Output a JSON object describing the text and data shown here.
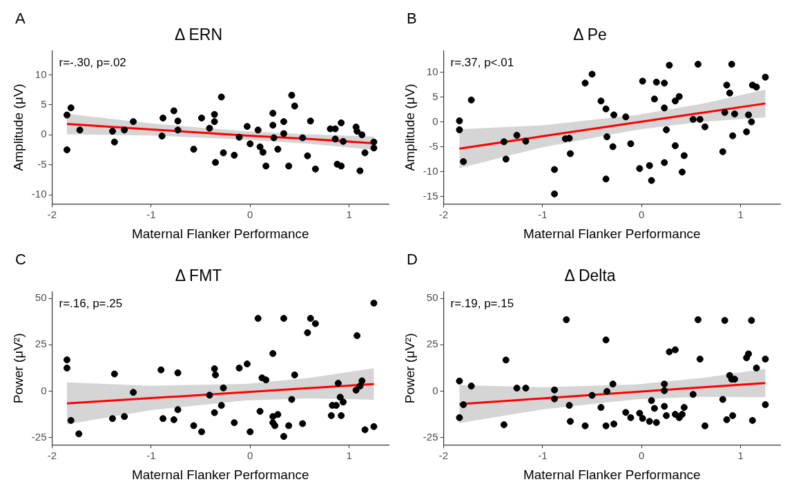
{
  "chart_data": [
    {
      "type": "scatter",
      "title": "Δ ERN",
      "xlabel": "Maternal Flanker Performance",
      "ylabel": "Amplitude (μV)",
      "annotations": [
        "A",
        "r=-.30, p=.02"
      ],
      "xlim": [
        -2,
        1.4
      ],
      "xticks": [
        -2,
        -1,
        0,
        1
      ],
      "ylim": [
        -11.5,
        14
      ],
      "yticks": [
        -10,
        -5,
        0,
        5,
        10
      ],
      "grid": false,
      "legend": false,
      "series": [
        {
          "marker": "circle",
          "color": "#000000",
          "x": [
            -1.85,
            -1.81,
            -1.85,
            -1.72,
            -1.39,
            -1.37,
            -1.27,
            -1.18,
            -0.88,
            -0.89,
            -0.77,
            -0.73,
            -0.73,
            -0.57,
            -0.49,
            -0.41,
            -0.36,
            -0.36,
            -0.35,
            -0.29,
            -0.27,
            -0.16,
            -0.11,
            -0.03,
            0.0,
            0.08,
            0.1,
            0.13,
            0.16,
            0.23,
            0.23,
            0.24,
            0.28,
            0.34,
            0.34,
            0.39,
            0.42,
            0.45,
            0.53,
            0.58,
            0.61,
            0.66,
            0.81,
            0.86,
            0.86,
            0.88,
            0.92,
            0.92,
            0.94,
            1.07,
            1.08,
            1.13,
            1.11,
            1.16,
            1.25,
            1.25
          ],
          "values": [
            3.3,
            4.5,
            -2.5,
            0.8,
            0.6,
            -1.2,
            0.8,
            2.2,
            2.8,
            -0.2,
            4.0,
            2.3,
            0.8,
            -2.4,
            2.8,
            1.1,
            3.4,
            2.2,
            -4.6,
            6.3,
            -3.0,
            -3.4,
            -0.4,
            1.4,
            -1.5,
            0.8,
            -2.0,
            -2.9,
            -5.2,
            3.6,
            1.6,
            -0.5,
            -2.4,
            2.2,
            0.2,
            -5.2,
            6.6,
            4.8,
            -0.5,
            -3.5,
            2.3,
            -5.7,
            1.0,
            1.0,
            -0.7,
            -4.9,
            -5.2,
            2.0,
            -1.1,
            1.3,
            0.6,
            0.0,
            -6.0,
            -3.0,
            -1.2,
            -2.2
          ]
        },
        {
          "type": "line",
          "color": "#ff0000",
          "x": [
            -1.85,
            -1,
            -0.05,
            0.6,
            1.25
          ],
          "values": [
            1.8,
            0.9,
            -0.1,
            -0.7,
            -1.4
          ],
          "lower": [
            0.1,
            -0.1,
            -0.8,
            -1.5,
            -2.5
          ],
          "upper": [
            3.5,
            1.9,
            0.6,
            0.1,
            -0.3
          ]
        }
      ]
    },
    {
      "type": "scatter",
      "title": "Δ Pe",
      "xlabel": "Maternal Flanker Performance",
      "ylabel": "Amplitude (μV)",
      "annotations": [
        "B",
        "r=.37, p<.01"
      ],
      "xlim": [
        -2,
        1.4
      ],
      "xticks": [
        -2,
        -1,
        0,
        1
      ],
      "ylim": [
        -16.5,
        14.3
      ],
      "yticks": [
        -15,
        -10,
        -5,
        0,
        5,
        10
      ],
      "grid": false,
      "legend": false,
      "series": [
        {
          "marker": "circle",
          "color": "#000000",
          "x": [
            -1.84,
            -1.84,
            -1.8,
            -1.72,
            -1.39,
            -1.37,
            -1.26,
            -1.17,
            -0.88,
            -0.88,
            -0.77,
            -0.73,
            -0.72,
            -0.57,
            -0.5,
            -0.41,
            -0.36,
            -0.35,
            -0.36,
            -0.29,
            -0.28,
            -0.16,
            -0.11,
            -0.02,
            0.01,
            0.08,
            0.1,
            0.13,
            0.15,
            0.23,
            0.23,
            0.23,
            0.25,
            0.28,
            0.34,
            0.38,
            0.34,
            0.41,
            0.43,
            0.52,
            0.59,
            0.57,
            0.64,
            0.82,
            0.84,
            0.86,
            0.89,
            0.91,
            0.92,
            0.94,
            1.06,
            1.08,
            1.11,
            1.12,
            1.16,
            1.25
          ],
          "values": [
            0.2,
            -1.6,
            -8.0,
            4.4,
            -4.0,
            -7.5,
            -2.7,
            -3.9,
            -9.6,
            -14.5,
            -3.4,
            -3.3,
            -6.4,
            7.8,
            9.6,
            4.2,
            2.6,
            -3.0,
            -11.5,
            -5.0,
            1.4,
            1.0,
            -4.4,
            -9.4,
            8.2,
            -8.8,
            -11.8,
            4.6,
            8.0,
            7.8,
            2.8,
            -8.2,
            -1.6,
            11.4,
            4.2,
            5.1,
            -4.8,
            -10.1,
            -6.8,
            0.5,
            0.5,
            11.6,
            -1.0,
            -6.0,
            1.9,
            7.4,
            5.8,
            11.6,
            -2.8,
            1.6,
            -2.0,
            1.4,
            0.0,
            7.4,
            7.0,
            9.0
          ]
        },
        {
          "type": "line",
          "color": "#ff0000",
          "x": [
            -1.84,
            -1,
            -0.05,
            0.6,
            1.25
          ],
          "values": [
            -5.4,
            -2.9,
            -0.1,
            1.8,
            3.7
          ],
          "lower": [
            -9.3,
            -5.1,
            -1.6,
            0.0,
            0.9
          ],
          "upper": [
            -1.5,
            -0.7,
            1.4,
            3.6,
            6.5
          ]
        }
      ]
    },
    {
      "type": "scatter",
      "title": "Δ FMT",
      "xlabel": "Maternal Flanker Performance",
      "ylabel": "Power (μV²)",
      "annotations": [
        "C",
        "r=.16, p=.25"
      ],
      "xlim": [
        -2,
        1.4
      ],
      "xticks": [
        -2,
        -1,
        0,
        1
      ],
      "ylim": [
        -28.8,
        53.5
      ],
      "yticks": [
        -25,
        0,
        25,
        50
      ],
      "grid": false,
      "legend": false,
      "series": [
        {
          "marker": "circle",
          "color": "#000000",
          "x": [
            -1.85,
            -1.85,
            -1.81,
            -1.73,
            -1.39,
            -1.37,
            -1.27,
            -1.18,
            -0.9,
            -0.88,
            -0.77,
            -0.73,
            -0.73,
            -0.57,
            -0.49,
            -0.41,
            -0.36,
            -0.35,
            -0.36,
            -0.27,
            -0.29,
            -0.16,
            -0.11,
            -0.03,
            0.0,
            0.08,
            0.1,
            0.12,
            0.16,
            0.23,
            0.23,
            0.23,
            0.28,
            0.25,
            0.34,
            0.34,
            0.39,
            0.42,
            0.45,
            0.53,
            0.58,
            0.61,
            0.66,
            0.82,
            0.83,
            0.87,
            0.89,
            0.91,
            0.94,
            0.92,
            1.08,
            1.07,
            1.11,
            1.13,
            1.16,
            1.25,
            1.25
          ],
          "values": [
            16.9,
            12.5,
            -15.7,
            -22.9,
            -14.7,
            9.3,
            -13.6,
            -0.6,
            11.5,
            -14.7,
            -15.3,
            9.9,
            -9.9,
            -18.5,
            -21.8,
            -2.1,
            12.1,
            8.8,
            -11.5,
            1.8,
            -7.6,
            -16.9,
            12.5,
            14.7,
            -21.8,
            39.2,
            -10.8,
            7.2,
            6.1,
            20.3,
            -13.6,
            -16.9,
            -12.5,
            -18.5,
            39.2,
            -24.3,
            -18.5,
            -4.4,
            8.8,
            -17.4,
            31.5,
            39.2,
            36.4,
            -13.1,
            -7.6,
            -7.6,
            4.3,
            -3.2,
            -5.8,
            -13.1,
            29.9,
            0.6,
            2.8,
            5.6,
            -20.7,
            47.4,
            -19.0
          ]
        },
        {
          "type": "line",
          "color": "#ff0000",
          "x": [
            -1.85,
            -1,
            -0.05,
            0.6,
            1.25
          ],
          "values": [
            -6.5,
            -3.7,
            -0.5,
            1.7,
            3.9
          ],
          "lower": [
            -17.8,
            -10.2,
            -5.0,
            -3.8,
            -4.6
          ],
          "upper": [
            4.8,
            2.9,
            4.0,
            7.2,
            12.4
          ]
        }
      ]
    },
    {
      "type": "scatter",
      "title": "Δ Delta",
      "xlabel": "Maternal Flanker Performance",
      "ylabel": "Power (μV²)",
      "annotations": [
        "D",
        "r=.19, p=.15"
      ],
      "xlim": [
        -2,
        1.4
      ],
      "xticks": [
        -2,
        -1,
        0,
        1
      ],
      "ylim": [
        -28.8,
        53.5
      ],
      "yticks": [
        -25,
        0,
        25,
        50
      ],
      "grid": false,
      "legend": false,
      "series": [
        {
          "marker": "circle",
          "color": "#000000",
          "x": [
            -1.84,
            -1.84,
            -1.8,
            -1.72,
            -1.39,
            -1.37,
            -1.26,
            -1.17,
            -0.88,
            -0.88,
            -0.76,
            -0.73,
            -0.72,
            -0.57,
            -0.5,
            -0.41,
            -0.36,
            -0.35,
            -0.36,
            -0.29,
            -0.28,
            -0.16,
            -0.11,
            -0.02,
            0.01,
            0.1,
            0.08,
            0.13,
            0.15,
            0.23,
            0.23,
            0.23,
            0.25,
            0.28,
            0.34,
            0.34,
            0.38,
            0.41,
            0.43,
            0.52,
            0.57,
            0.59,
            0.64,
            0.82,
            0.84,
            0.86,
            0.89,
            0.91,
            0.94,
            0.92,
            1.06,
            1.08,
            1.11,
            1.12,
            1.16,
            1.25,
            1.25
          ],
          "values": [
            5.5,
            -14.2,
            -7.2,
            2.8,
            -18.0,
            16.8,
            1.7,
            1.7,
            -4.1,
            0.7,
            38.5,
            -7.6,
            -16.2,
            -18.6,
            -2.2,
            -8.7,
            27.6,
            -0.1,
            -18.6,
            3.9,
            -17.6,
            -11.4,
            -14.2,
            -11.8,
            -14.6,
            -5.0,
            -16.2,
            -9.2,
            -16.8,
            3.9,
            0.3,
            -8.1,
            -13.1,
            21.2,
            22.3,
            -12.4,
            -14.2,
            -12.4,
            -8.7,
            -1.7,
            38.5,
            17.3,
            -18.6,
            -4.4,
            38.1,
            -15.3,
            8.5,
            6.5,
            6.5,
            -13.1,
            18.0,
            20.1,
            38.1,
            -15.7,
            12.5,
            17.3,
            -7.2
          ]
        },
        {
          "type": "line",
          "color": "#ff0000",
          "x": [
            -1.84,
            -1,
            -0.05,
            0.6,
            1.25
          ],
          "values": [
            -6.9,
            -3.8,
            -0.3,
            2.1,
            4.4
          ],
          "lower": [
            -17.1,
            -9.8,
            -4.3,
            -3.0,
            -3.2
          ],
          "upper": [
            3.3,
            2.2,
            3.7,
            7.1,
            12.0
          ]
        }
      ]
    }
  ]
}
